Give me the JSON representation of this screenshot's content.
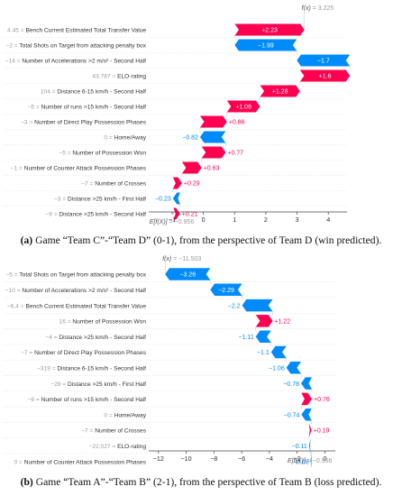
{
  "colors": {
    "positive": "#ff0051",
    "negative": "#008bfb"
  },
  "chart_data": [
    {
      "type": "waterfall",
      "fx_label": "f(x)",
      "fx_value": "= 3.225",
      "ex_label": "E[f(X)]",
      "ex_value": "= −0.956",
      "base": -0.956,
      "xlim": [
        -1.75,
        4.6
      ],
      "x_ticks": [
        -1,
        0,
        1,
        2,
        3,
        4
      ],
      "x_tick_labels": [
        "−1",
        "0",
        "1",
        "2",
        "3",
        "4"
      ],
      "features": [
        {
          "val": "4.45",
          "name": "Bench Current Estimated Total Transfer Value",
          "value": 2.23,
          "label": "+2.23"
        },
        {
          "val": "−2",
          "name": "Total Shots on Target from attacking penalty box",
          "value": -1.99,
          "label": "−1.99"
        },
        {
          "val": "−14",
          "name": "Number of Accelerations >2 m/s² - Second Half",
          "value": -1.7,
          "label": "−1.7"
        },
        {
          "val": "43.787",
          "name": "ELO-rating",
          "value": 1.6,
          "label": "+1.6"
        },
        {
          "val": "104",
          "name": "Distance 6-15 km/h - Second Half",
          "value": 1.28,
          "label": "+1.28"
        },
        {
          "val": "−5",
          "name": "Number of runs >15 km/h - Second Half",
          "value": 1.06,
          "label": "+1.06"
        },
        {
          "val": "−3",
          "name": "Number of Direct Play Possession Phases",
          "value": 0.86,
          "label": "+0.86"
        },
        {
          "val": "0",
          "name": "Home/Away",
          "value": -0.82,
          "label": "−0.82"
        },
        {
          "val": "−5",
          "name": "Number of Possession Won",
          "value": 0.77,
          "label": "+0.77"
        },
        {
          "val": "−1",
          "name": "Number of Counter Attack Possession Phases",
          "value": 0.63,
          "label": "+0.63"
        },
        {
          "val": "−7",
          "name": "Number of Crosses",
          "value": 0.29,
          "label": "+0.29"
        },
        {
          "val": "−3",
          "name": "Distance >25 km/h - First Half",
          "value": -0.23,
          "label": "−0.23"
        },
        {
          "val": "−9",
          "name": "Distance >25 km/h - Second Half",
          "value": 0.21,
          "label": "+0.21"
        }
      ],
      "caption_letter": "(a)",
      "caption_text": " Game “Team C”-“Team D” (0-1), from the perspective of Team D (win predicted)."
    },
    {
      "type": "waterfall",
      "fx_label": "f(x)",
      "fx_value": "= −11.503",
      "ex_label": "E[f(X)]",
      "ex_value": "= −0.956",
      "base": -0.956,
      "xlim": [
        -12.7,
        0.75
      ],
      "x_ticks": [
        -12,
        -10,
        -8,
        -6,
        -4,
        -2,
        0
      ],
      "x_tick_labels": [
        "−12",
        "−10",
        "−8",
        "−6",
        "−4",
        "−2",
        "0"
      ],
      "features": [
        {
          "val": "−5",
          "name": "Total Shots on Target from attacking penalty box",
          "value": -3.26,
          "label": "−3.26"
        },
        {
          "val": "−10",
          "name": "Number of Accelerations >2 m/s² - Second Half",
          "value": -2.29,
          "label": "−2.29"
        },
        {
          "val": "−6.4",
          "name": "Bench Current Estimated Total Transfer Value",
          "value": -2.2,
          "label": "−2.2"
        },
        {
          "val": "16",
          "name": "Number of Possession Won",
          "value": 1.22,
          "label": "+1.22"
        },
        {
          "val": "−4",
          "name": "Distance >25 km/h - Second Half",
          "value": -1.11,
          "label": "−1.11"
        },
        {
          "val": "−7",
          "name": "Number of Direct Play Possession Phases",
          "value": -1.1,
          "label": "−1.1"
        },
        {
          "val": "−319",
          "name": "Distance 6-15 km/h - Second Half",
          "value": -1.06,
          "label": "−1.06"
        },
        {
          "val": "−29",
          "name": "Distance >25 km/h - First Half",
          "value": -0.78,
          "label": "−0.78"
        },
        {
          "val": "−6",
          "name": "Number of runs >15 km/h - Second Half",
          "value": 0.76,
          "label": "+0.76"
        },
        {
          "val": "0",
          "name": "Home/Away",
          "value": -0.74,
          "label": "−0.74"
        },
        {
          "val": "−7",
          "name": "Number of Crosses",
          "value": 0.19,
          "label": "+0.19"
        },
        {
          "val": "−22.027",
          "name": "ELO-rating",
          "value": -0.11,
          "label": "−0.11"
        },
        {
          "val": "0",
          "name": "Number of Counter Attack Possession Phases",
          "value": -0.08,
          "label": "−0.08"
        }
      ],
      "caption_letter": "(b)",
      "caption_text": " Game “Team A”-“Team B” (2-1), from the perspective of Team B (loss predicted)."
    }
  ]
}
